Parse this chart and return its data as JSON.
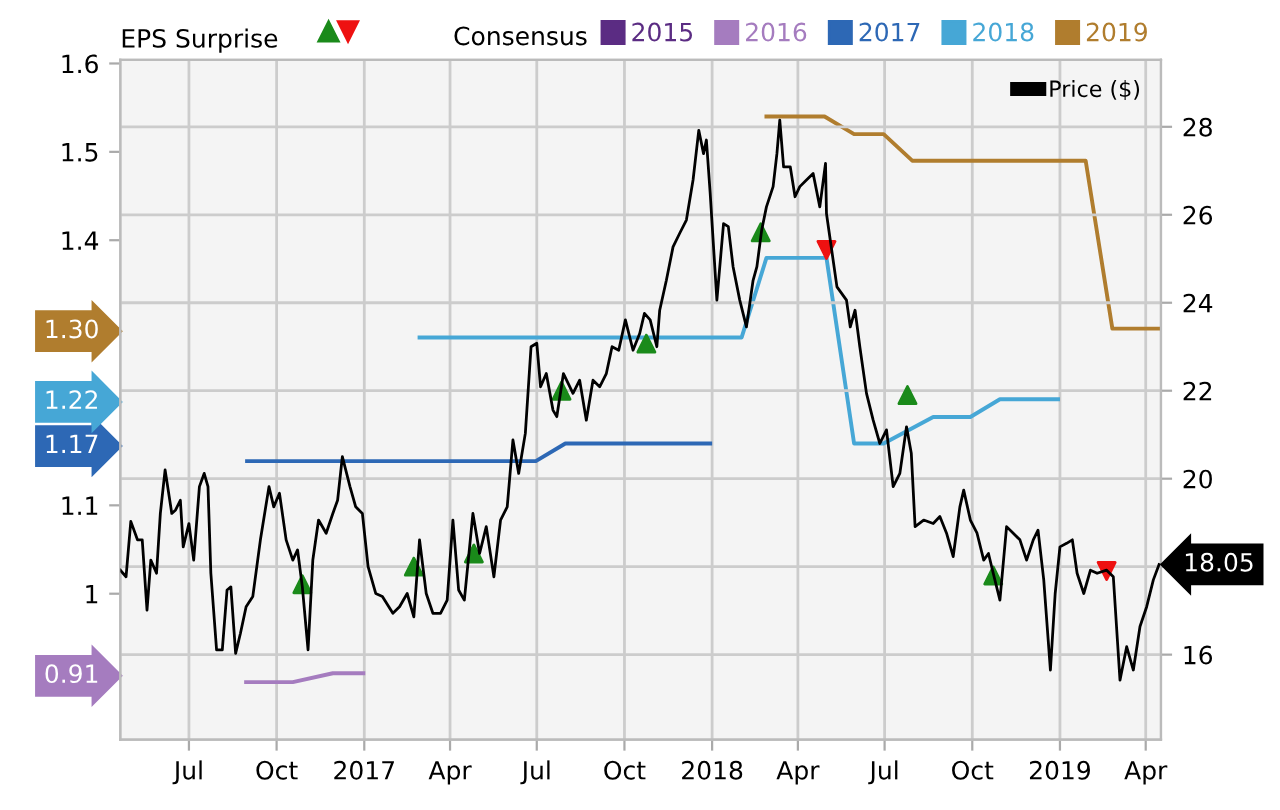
{
  "chart_data": {
    "type": "line",
    "annotations": [
      "EPS Surprise"
    ],
    "legend_title": "Consensus",
    "legend": "top right",
    "grid": true,
    "marker": "none",
    "line_style": "solid",
    "xlim": [
      "2016-04-20",
      "2019-04-17"
    ],
    "xticks": [
      {
        "value": "2016-07-01",
        "label": "Jul"
      },
      {
        "value": "2016-10-01",
        "label": "Oct"
      },
      {
        "value": "2017-01-01",
        "label": "2017"
      },
      {
        "value": "2017-04-01",
        "label": "Apr"
      },
      {
        "value": "2017-07-01",
        "label": "Jul"
      },
      {
        "value": "2017-10-01",
        "label": "Oct"
      },
      {
        "value": "2018-01-01",
        "label": "2018"
      },
      {
        "value": "2018-04-01",
        "label": "Apr"
      },
      {
        "value": "2018-07-01",
        "label": "Jul"
      },
      {
        "value": "2018-10-01",
        "label": "Oct"
      },
      {
        "value": "2019-01-01",
        "label": "2019"
      },
      {
        "value": "2019-04-01",
        "label": "Apr"
      }
    ],
    "ylim": [
      0.835,
      1.604
    ],
    "yticks": [
      {
        "value": 0.91,
        "label": "0.91"
      },
      1,
      1.1,
      {
        "value": 1.17,
        "label": "1.17"
      },
      {
        "value": 1.22,
        "label": "1.22"
      },
      {
        "value": 1.3,
        "label": "1.30"
      },
      1.4,
      1.5,
      1.6
    ],
    "y2lim": [
      14.07,
      29.52
    ],
    "y2ticks": [
      16,
      {
        "value": 18,
        "label": null
      },
      20,
      22,
      24,
      26,
      28
    ],
    "series": [
      {
        "name": "2015",
        "color": "#5b2c83"
      },
      {
        "name": "2016",
        "color": "#a57cbf",
        "x": [
          "2016-08-30",
          "2016-10-18",
          "2016-11-29",
          "2016-12-31"
        ],
        "values": [
          0.9,
          0.9,
          0.91,
          0.91
        ]
      },
      {
        "name": "2017",
        "color": "#2d68b5",
        "x": [
          "2016-08-31",
          "2017-06-30",
          "2017-07-31",
          "2017-12-30"
        ],
        "values": [
          1.15,
          1.15,
          1.17,
          1.17
        ]
      },
      {
        "name": "2018",
        "color": "#46a7d6",
        "x": [
          "2017-02-28",
          "2018-02-01",
          "2018-02-27",
          "2018-05-01",
          "2018-05-30",
          "2018-06-30",
          "2018-08-21",
          "2018-09-29",
          "2018-10-30",
          "2018-12-30"
        ],
        "values": [
          1.29,
          1.29,
          1.38,
          1.38,
          1.17,
          1.17,
          1.2,
          1.2,
          1.22,
          1.22
        ]
      },
      {
        "name": "2019",
        "color": "#b07d2e",
        "x": [
          "2018-02-27",
          "2018-04-29",
          "2018-05-30",
          "2018-06-30",
          "2018-07-30",
          "2019-01-28",
          "2019-02-25",
          "2019-04-14"
        ],
        "values": [
          1.54,
          1.54,
          1.52,
          1.52,
          1.49,
          1.49,
          1.3,
          1.3
        ]
      },
      {
        "name": "Price ($)",
        "color": "#000000",
        "axis": "y2",
        "x": [
          "2016-04-20",
          "2016-04-26",
          "2016-05-01",
          "2016-05-08",
          "2016-05-13",
          "2016-05-18",
          "2016-05-22",
          "2016-05-28",
          "2016-06-01",
          "2016-06-06",
          "2016-06-13",
          "2016-06-17",
          "2016-06-22",
          "2016-06-25",
          "2016-07-01",
          "2016-07-06",
          "2016-07-12",
          "2016-07-17",
          "2016-07-21",
          "2016-07-24",
          "2016-07-30",
          "2016-08-05",
          "2016-08-10",
          "2016-08-14",
          "2016-08-19",
          "2016-08-24",
          "2016-08-30",
          "2016-09-06",
          "2016-09-14",
          "2016-09-23",
          "2016-09-28",
          "2016-10-04",
          "2016-10-11",
          "2016-10-18",
          "2016-10-23",
          "2016-10-28",
          "2016-11-03",
          "2016-11-08",
          "2016-11-14",
          "2016-11-22",
          "2016-11-29",
          "2016-12-04",
          "2016-12-09",
          "2016-12-17",
          "2016-12-23",
          "2016-12-30",
          "2017-01-05",
          "2017-01-13",
          "2017-01-20",
          "2017-01-31",
          "2017-02-07",
          "2017-02-15",
          "2017-02-22",
          "2017-02-28",
          "2017-03-07",
          "2017-03-14",
          "2017-03-22",
          "2017-03-29",
          "2017-04-04",
          "2017-04-10",
          "2017-04-16",
          "2017-04-25",
          "2017-05-02",
          "2017-05-09",
          "2017-05-17",
          "2017-05-24",
          "2017-05-31",
          "2017-06-06",
          "2017-06-12",
          "2017-06-19",
          "2017-06-25",
          "2017-07-01",
          "2017-07-05",
          "2017-07-11",
          "2017-07-18",
          "2017-07-22",
          "2017-07-29",
          "2017-08-08",
          "2017-08-15",
          "2017-08-22",
          "2017-08-29",
          "2017-09-05",
          "2017-09-12",
          "2017-09-18",
          "2017-09-25",
          "2017-10-02",
          "2017-10-10",
          "2017-10-17",
          "2017-10-22",
          "2017-10-28",
          "2017-11-04",
          "2017-11-07",
          "2017-11-14",
          "2017-11-21",
          "2017-11-28",
          "2017-12-05",
          "2017-12-12",
          "2017-12-18",
          "2017-12-23",
          "2017-12-26",
          "2017-12-30",
          "2018-01-06",
          "2018-01-13",
          "2018-01-18",
          "2018-01-23",
          "2018-01-30",
          "2018-02-06",
          "2018-02-13",
          "2018-02-17",
          "2018-02-22",
          "2018-02-27",
          "2018-03-06",
          "2018-03-10",
          "2018-03-13",
          "2018-03-17",
          "2018-03-24",
          "2018-03-29",
          "2018-04-03",
          "2018-04-10",
          "2018-04-17",
          "2018-04-24",
          "2018-04-30",
          "2018-05-01",
          "2018-05-07",
          "2018-05-12",
          "2018-05-22",
          "2018-05-26",
          "2018-05-31",
          "2018-06-05",
          "2018-06-12",
          "2018-06-19",
          "2018-06-26",
          "2018-07-03",
          "2018-07-10",
          "2018-07-17",
          "2018-07-24",
          "2018-07-29",
          "2018-08-02",
          "2018-08-11",
          "2018-08-21",
          "2018-08-28",
          "2018-09-04",
          "2018-09-11",
          "2018-09-18",
          "2018-09-22",
          "2018-09-29",
          "2018-10-06",
          "2018-10-13",
          "2018-10-18",
          "2018-10-23",
          "2018-10-30",
          "2018-11-06",
          "2018-11-13",
          "2018-11-20",
          "2018-11-27",
          "2018-12-04",
          "2018-12-09",
          "2018-12-15",
          "2018-12-22",
          "2018-12-27",
          "2019-01-01",
          "2019-01-08",
          "2019-01-14",
          "2019-01-19",
          "2019-01-26",
          "2019-02-02",
          "2019-02-09",
          "2019-02-19",
          "2019-02-26",
          "2019-03-05",
          "2019-03-12",
          "2019-03-19",
          "2019-03-26",
          "2019-04-02",
          "2019-04-09",
          "2019-04-15"
        ],
        "values": [
          17.92,
          17.77,
          19.03,
          18.61,
          18.61,
          17.01,
          18.15,
          17.85,
          19.21,
          20.2,
          19.21,
          19.29,
          19.51,
          18.45,
          18.98,
          18.15,
          19.82,
          20.12,
          19.82,
          17.85,
          16.11,
          16.11,
          17.47,
          17.54,
          16.03,
          16.48,
          17.09,
          17.32,
          18.61,
          19.82,
          19.36,
          19.67,
          18.61,
          18.15,
          18.38,
          17.54,
          16.11,
          18.15,
          19.06,
          18.76,
          19.21,
          19.51,
          20.5,
          19.82,
          19.36,
          19.21,
          18.0,
          17.39,
          17.32,
          16.94,
          17.09,
          17.39,
          16.86,
          18.61,
          17.39,
          16.94,
          16.94,
          17.24,
          19.06,
          17.47,
          17.24,
          19.21,
          18.3,
          18.91,
          17.77,
          19.06,
          19.36,
          20.88,
          20.12,
          21.03,
          23.0,
          23.08,
          22.09,
          22.39,
          21.56,
          21.41,
          22.39,
          21.94,
          22.24,
          21.33,
          22.24,
          22.09,
          22.39,
          23.0,
          22.92,
          23.61,
          22.92,
          23.3,
          23.76,
          23.61,
          23.0,
          23.83,
          24.51,
          25.27,
          25.58,
          25.88,
          26.79,
          27.92,
          27.39,
          27.7,
          26.48,
          24.06,
          25.8,
          25.73,
          24.82,
          24.06,
          23.45,
          24.51,
          24.82,
          25.65,
          26.18,
          26.64,
          27.39,
          28.15,
          27.09,
          27.09,
          26.41,
          26.64,
          26.79,
          26.94,
          26.18,
          27.17,
          26.03,
          25.12,
          24.36,
          24.06,
          23.45,
          23.83,
          23.0,
          21.94,
          21.33,
          20.8,
          21.11,
          19.82,
          20.12,
          21.18,
          20.58,
          18.91,
          19.06,
          18.98,
          19.14,
          18.76,
          18.23,
          19.36,
          19.74,
          19.06,
          18.76,
          18.15,
          18.3,
          17.85,
          17.24,
          18.91,
          18.76,
          18.61,
          18.15,
          18.61,
          18.83,
          17.7,
          15.65,
          17.39,
          18.45,
          18.53,
          18.61,
          17.85,
          17.39,
          17.92,
          17.85,
          17.92,
          17.77,
          15.42,
          16.18,
          15.65,
          16.64,
          17.09,
          17.7,
          18.05
        ],
        "value_labels": [
          null,
          null,
          null,
          null,
          null,
          null,
          null,
          null,
          null,
          null,
          null,
          null,
          null,
          null,
          null,
          null,
          null,
          null,
          null,
          null,
          null,
          null,
          null,
          null,
          null,
          null,
          null,
          null,
          null,
          null,
          null,
          null,
          null,
          null,
          null,
          null,
          null,
          null,
          null,
          null,
          null,
          null,
          null,
          null,
          null,
          null,
          null,
          null,
          null,
          null,
          null,
          null,
          null,
          null,
          null,
          null,
          null,
          null,
          null,
          null,
          null,
          null,
          null,
          null,
          null,
          null,
          null,
          null,
          null,
          null,
          null,
          null,
          null,
          null,
          null,
          null,
          null,
          null,
          null,
          null,
          null,
          null,
          null,
          null,
          null,
          null,
          null,
          null,
          null,
          null,
          null,
          null,
          null,
          null,
          null,
          null,
          null,
          null,
          null,
          null,
          null,
          null,
          null,
          null,
          null,
          null,
          null,
          null,
          null,
          null,
          null,
          null,
          null,
          null,
          null,
          null,
          null,
          null,
          null,
          null,
          null,
          null,
          null,
          null,
          null,
          null,
          null,
          null,
          null,
          null,
          null,
          null,
          null,
          null,
          null,
          null,
          null,
          null,
          null,
          null,
          null,
          null,
          null,
          null,
          null,
          null,
          null,
          null,
          null,
          null,
          null,
          null,
          null,
          null,
          null,
          null,
          null,
          null,
          null,
          null,
          null,
          null,
          null,
          null,
          null,
          null,
          null,
          null,
          null,
          null,
          null,
          null,
          null,
          null,
          null,
          "18.05"
        ]
      },
      {
        "type": "scatter",
        "marker": "triangle",
        "color": "#1a8a1a",
        "axis": "y2",
        "x": [
          "2016-10-28",
          "2017-02-22",
          "2017-04-26",
          "2017-07-27",
          "2017-10-24",
          "2018-02-21",
          "2018-07-25",
          "2018-10-23"
        ],
        "values": [
          17.6,
          18.0,
          18.3,
          22.0,
          23.07,
          25.6,
          21.9,
          17.8
        ]
      },
      {
        "type": "scatter",
        "marker": "triangle",
        "color": "#ee1111",
        "axis": "y2",
        "x": [
          "2018-05-01",
          "2019-02-19"
        ],
        "values": [
          25.2,
          17.9
        ]
      }
    ]
  }
}
